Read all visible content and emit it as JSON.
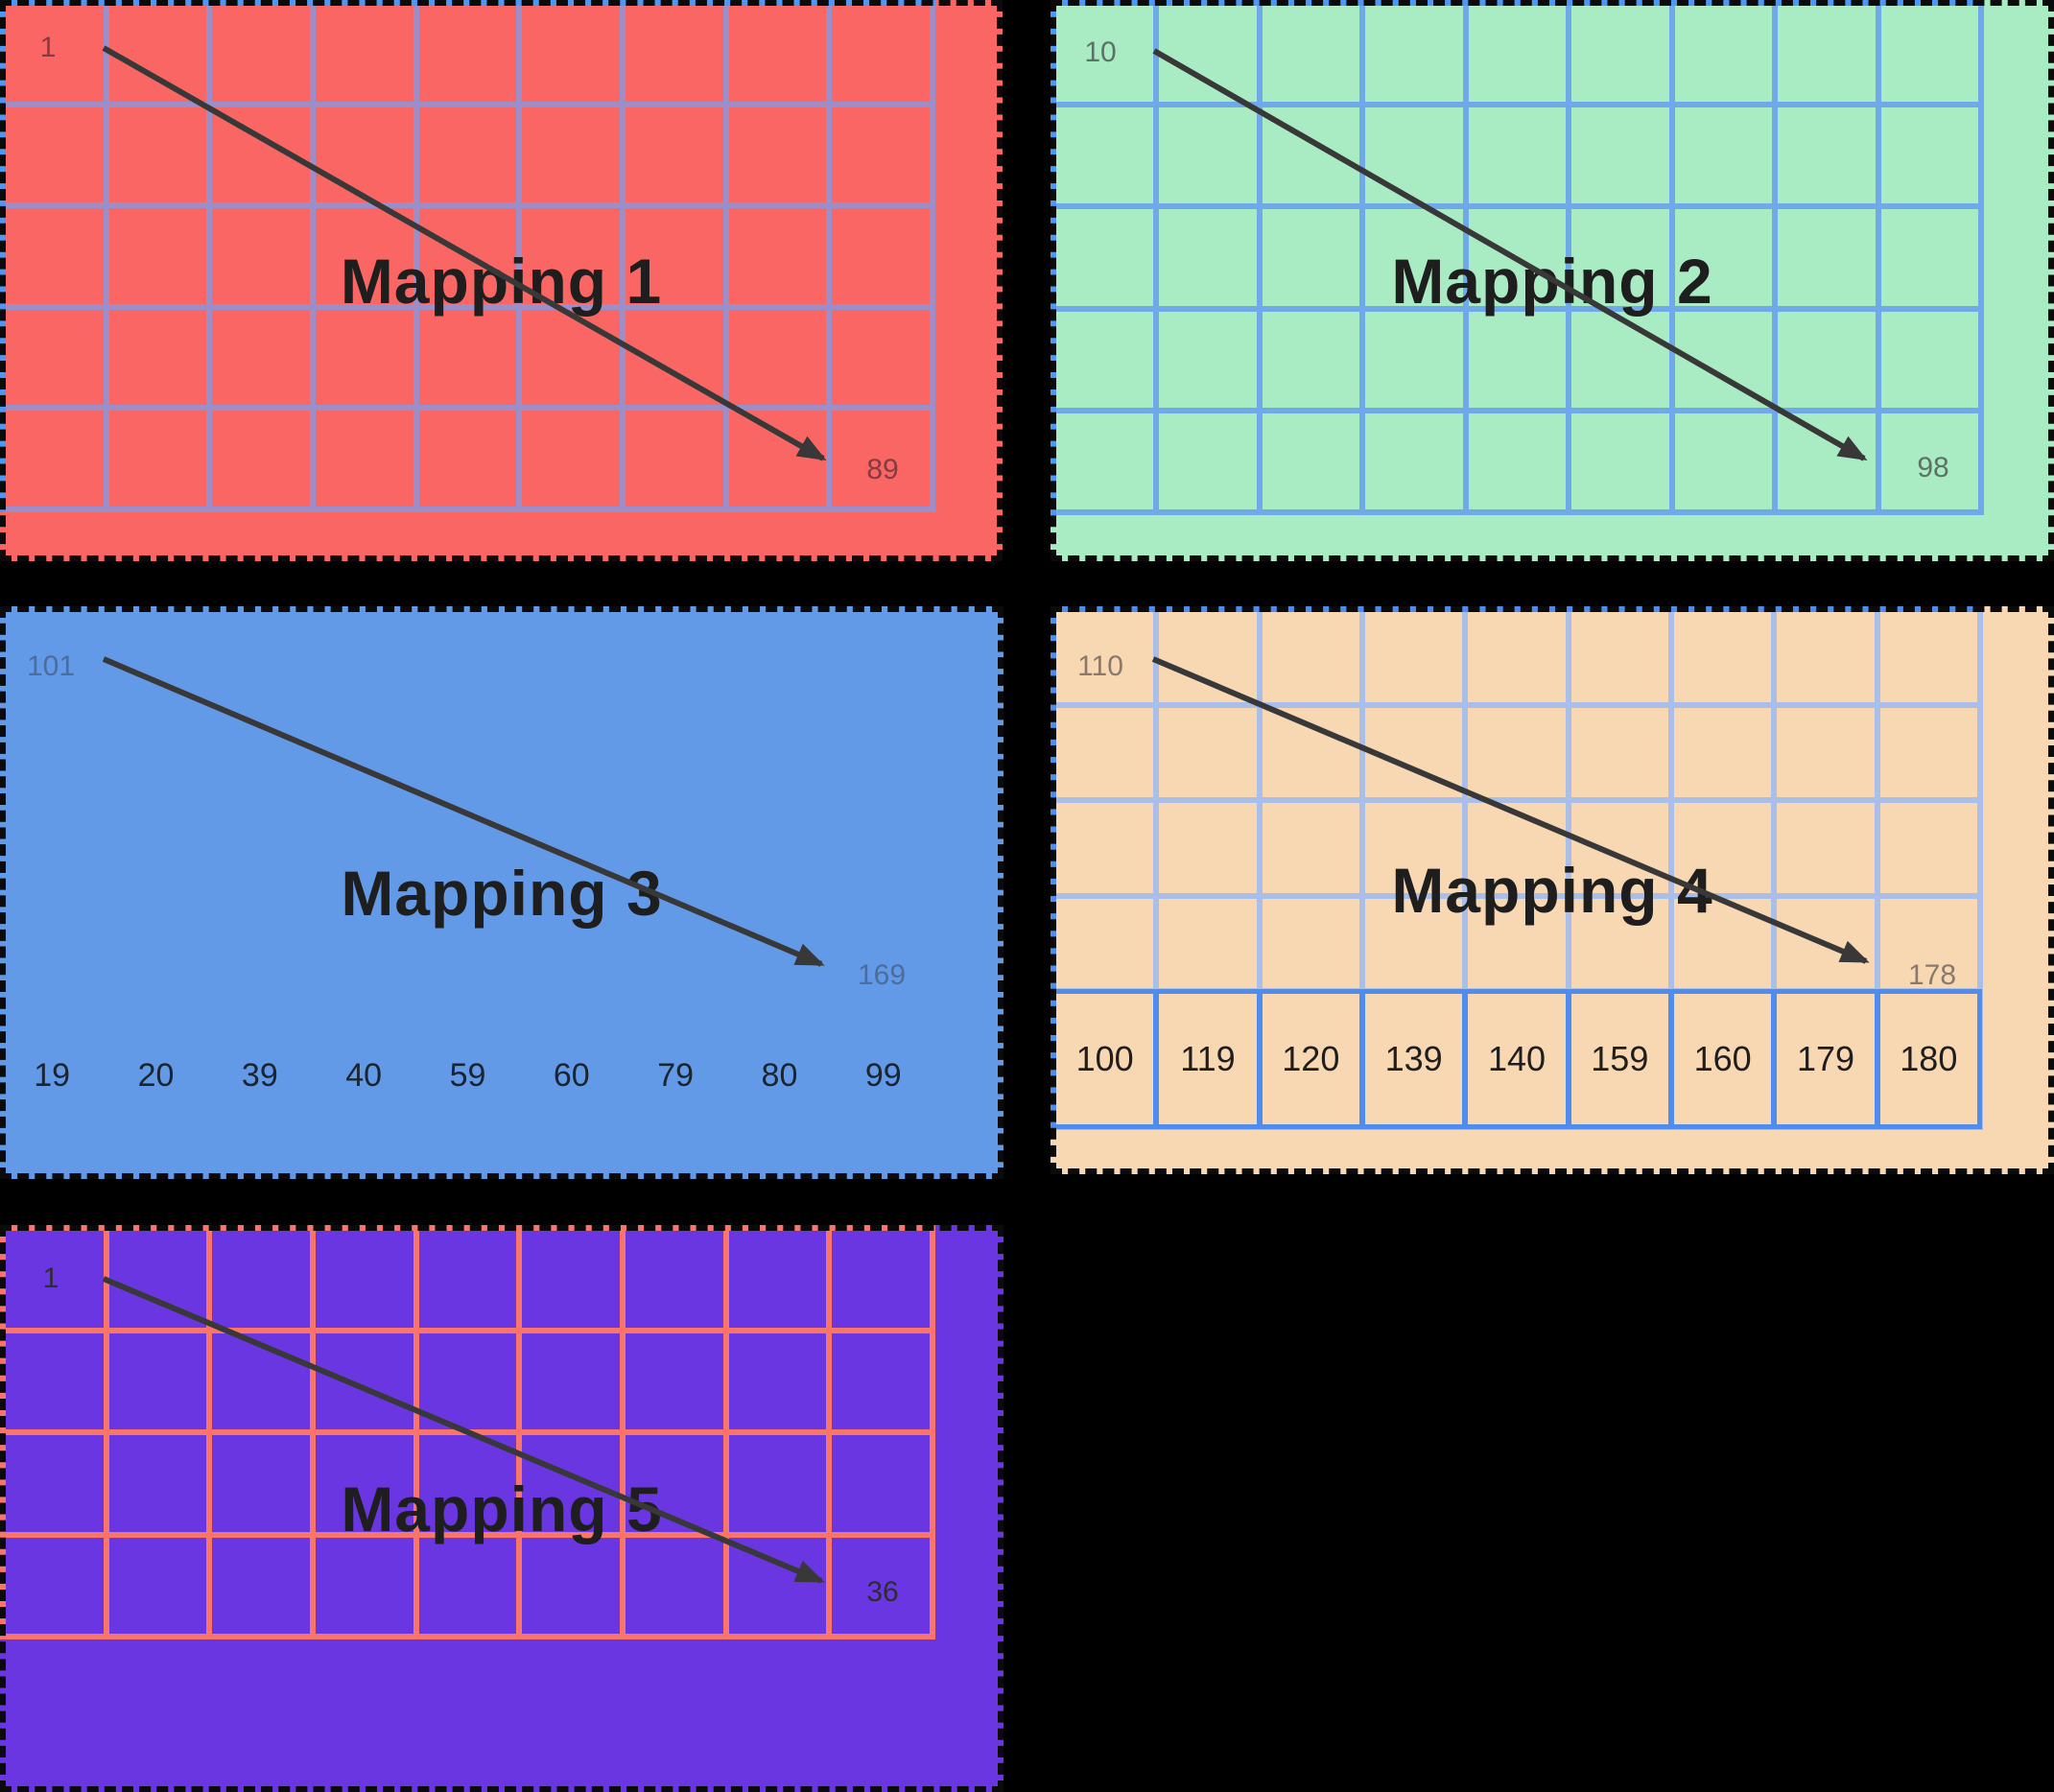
{
  "background": "#000000",
  "arrow_color": "#383838",
  "title_color": "#1e1e1e",
  "panels": [
    {
      "title": "Mapping 1",
      "start_label": "1",
      "end_label": "89",
      "grid": {
        "cols": 9,
        "rows": 5
      },
      "colors": {
        "bg": "#f96663",
        "line": "#9b8ec9",
        "accent": "#4e97f4",
        "label": "#843b44",
        "numbers": "#1e1e1e"
      }
    },
    {
      "title": "Mapping 2",
      "start_label": "10",
      "end_label": "98",
      "grid": {
        "cols": 9,
        "rows": 5
      },
      "colors": {
        "bg": "#a9ecc4",
        "line": "#6fa9e9",
        "accent": "#4e97f4",
        "label": "#5c7265",
        "numbers": "#1e1e1e"
      }
    },
    {
      "title": "Mapping 3",
      "start_label": "101",
      "end_label": "169",
      "bottom_numbers": [
        "19",
        "20",
        "39",
        "40",
        "59",
        "60",
        "79",
        "80",
        "99"
      ],
      "colors": {
        "bg": "#639ae8",
        "line": "#639ae8",
        "accent": "#639ae8",
        "label": "#4c6c9c",
        "numbers": "#1b2530"
      }
    },
    {
      "title": "Mapping 4",
      "start_label": "110",
      "end_label": "178",
      "grid": {
        "cols": 9,
        "rows": 5
      },
      "highlight_row_numbers": [
        "100",
        "119",
        "120",
        "139",
        "140",
        "159",
        "160",
        "179",
        "180"
      ],
      "colors": {
        "bg": "#f8d7b3",
        "line": "#a9bfe9",
        "accent": "#4e8cf0",
        "label": "#8a796a",
        "numbers": "#1e1e1e"
      }
    },
    {
      "title": "Mapping 5",
      "start_label": "1",
      "end_label": "36",
      "grid": {
        "cols": 9,
        "rows": 4
      },
      "colors": {
        "bg": "#6a36e1",
        "line": "#f9756a",
        "accent": "#f9756a",
        "label": "#2d2d2d",
        "numbers": "#1e1e1e"
      }
    }
  ]
}
